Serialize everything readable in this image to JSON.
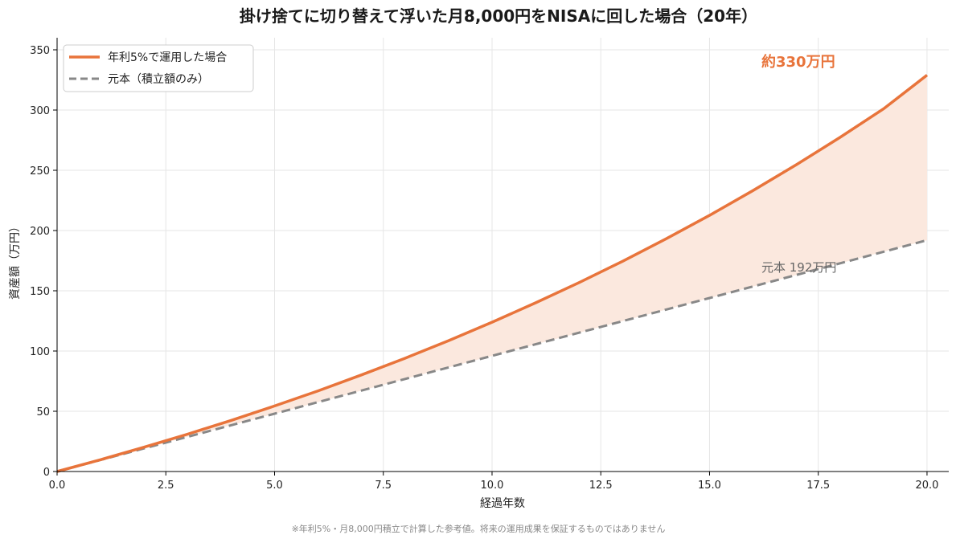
{
  "chart_data": {
    "type": "line",
    "title": "掛け捨てに切り替えて浮いた月8,000円をNISAに回した場合（20年）",
    "xlabel": "経過年数",
    "ylabel": "資産額（万円）",
    "xlim": [
      0,
      20.5
    ],
    "ylim": [
      0,
      360
    ],
    "x_ticks": [
      "0.0",
      "2.5",
      "5.0",
      "7.5",
      "10.0",
      "12.5",
      "15.0",
      "17.5",
      "20.0"
    ],
    "y_ticks": [
      "0",
      "50",
      "100",
      "150",
      "200",
      "250",
      "300",
      "350"
    ],
    "grid": true,
    "legend_position": "top-left",
    "x": [
      0,
      1,
      2,
      3,
      4,
      5,
      6,
      7,
      8,
      9,
      10,
      11,
      12,
      13,
      14,
      15,
      16,
      17,
      18,
      19,
      20
    ],
    "series": [
      {
        "name": "年利5%で運用した場合",
        "color": "#E8743B",
        "style": "solid",
        "values": [
          0,
          9.8,
          20.2,
          31.0,
          42.4,
          54.4,
          66.9,
          80.2,
          94.0,
          108.6,
          123.9,
          140.0,
          156.8,
          174.5,
          193.1,
          212.6,
          233.2,
          254.7,
          277.3,
          301.0,
          329.0
        ]
      },
      {
        "name": "元本（積立額のみ）",
        "color": "#888888",
        "style": "dashed",
        "values": [
          0,
          9.6,
          19.2,
          28.8,
          38.4,
          48.0,
          57.6,
          67.2,
          76.8,
          86.4,
          96.0,
          105.6,
          115.2,
          124.8,
          134.4,
          144.0,
          153.6,
          163.2,
          172.8,
          182.4,
          192.0
        ]
      }
    ],
    "fill_between": {
      "color": "#FBE8DE"
    },
    "annotations": [
      {
        "text": "約330万円",
        "color": "#E8743B"
      },
      {
        "text": "元本 192万円",
        "color": "#666666"
      }
    ],
    "note": "※年利5%・月8,000円積立で計算した参考値。将来の運用成果を保証するものではありません"
  }
}
